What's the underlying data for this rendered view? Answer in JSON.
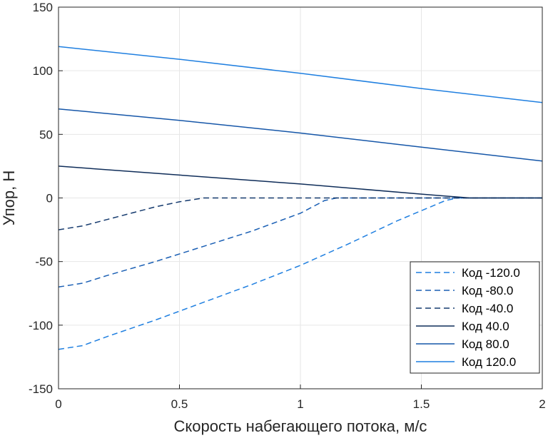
{
  "chart_data": {
    "type": "line",
    "title": "",
    "xlabel": "Скорость набегающего потока, м/с",
    "ylabel": "Упор, Н",
    "xlim": [
      0,
      2
    ],
    "ylim": [
      -150,
      150
    ],
    "xticks": [
      0,
      0.5,
      1,
      1.5,
      2
    ],
    "xtick_labels": [
      "0",
      "0.5",
      "1",
      "1.5",
      "2"
    ],
    "yticks": [
      -150,
      -100,
      -50,
      0,
      50,
      100,
      150
    ],
    "ytick_labels": [
      "-150",
      "-100",
      "-50",
      "0",
      "50",
      "100",
      "150"
    ],
    "grid": true,
    "legend_position": "bottom-right",
    "series": [
      {
        "name": "Код -120.0",
        "style": "dashed",
        "color": "#1f7fe0",
        "x": [
          0,
          0.1,
          0.2,
          0.4,
          0.6,
          0.8,
          1.0,
          1.2,
          1.4,
          1.6,
          1.65,
          2.0
        ],
        "y": [
          -119,
          -116,
          -109,
          -96,
          -82,
          -68,
          -53,
          -36,
          -18,
          -2,
          0,
          0
        ]
      },
      {
        "name": "Код -80.0",
        "style": "dashed",
        "color": "#1a5fb4",
        "x": [
          0,
          0.1,
          0.2,
          0.4,
          0.6,
          0.8,
          1.0,
          1.1,
          1.15,
          2.0
        ],
        "y": [
          -70,
          -67,
          -61,
          -50,
          -38,
          -26,
          -12,
          -2,
          0,
          0
        ]
      },
      {
        "name": "Код -40.0",
        "style": "dashed",
        "color": "#153a6e",
        "x": [
          0,
          0.1,
          0.2,
          0.3,
          0.4,
          0.5,
          0.6,
          2.0
        ],
        "y": [
          -25,
          -22,
          -17,
          -12,
          -7,
          -3,
          0,
          0
        ]
      },
      {
        "name": "Код 40.0",
        "style": "solid",
        "color": "#0f2d59",
        "x": [
          0,
          0.5,
          1.0,
          1.5,
          1.7,
          2.0
        ],
        "y": [
          25,
          18,
          11,
          3,
          0,
          0
        ]
      },
      {
        "name": "Код 80.0",
        "style": "solid",
        "color": "#1556a8",
        "x": [
          0,
          0.5,
          1.0,
          1.5,
          2.0
        ],
        "y": [
          70,
          61,
          51,
          40,
          29
        ]
      },
      {
        "name": "Код 120.0",
        "style": "solid",
        "color": "#1f7fe0",
        "x": [
          0,
          0.5,
          1.0,
          1.5,
          2.0
        ],
        "y": [
          119,
          109,
          98,
          86,
          75
        ]
      }
    ]
  }
}
